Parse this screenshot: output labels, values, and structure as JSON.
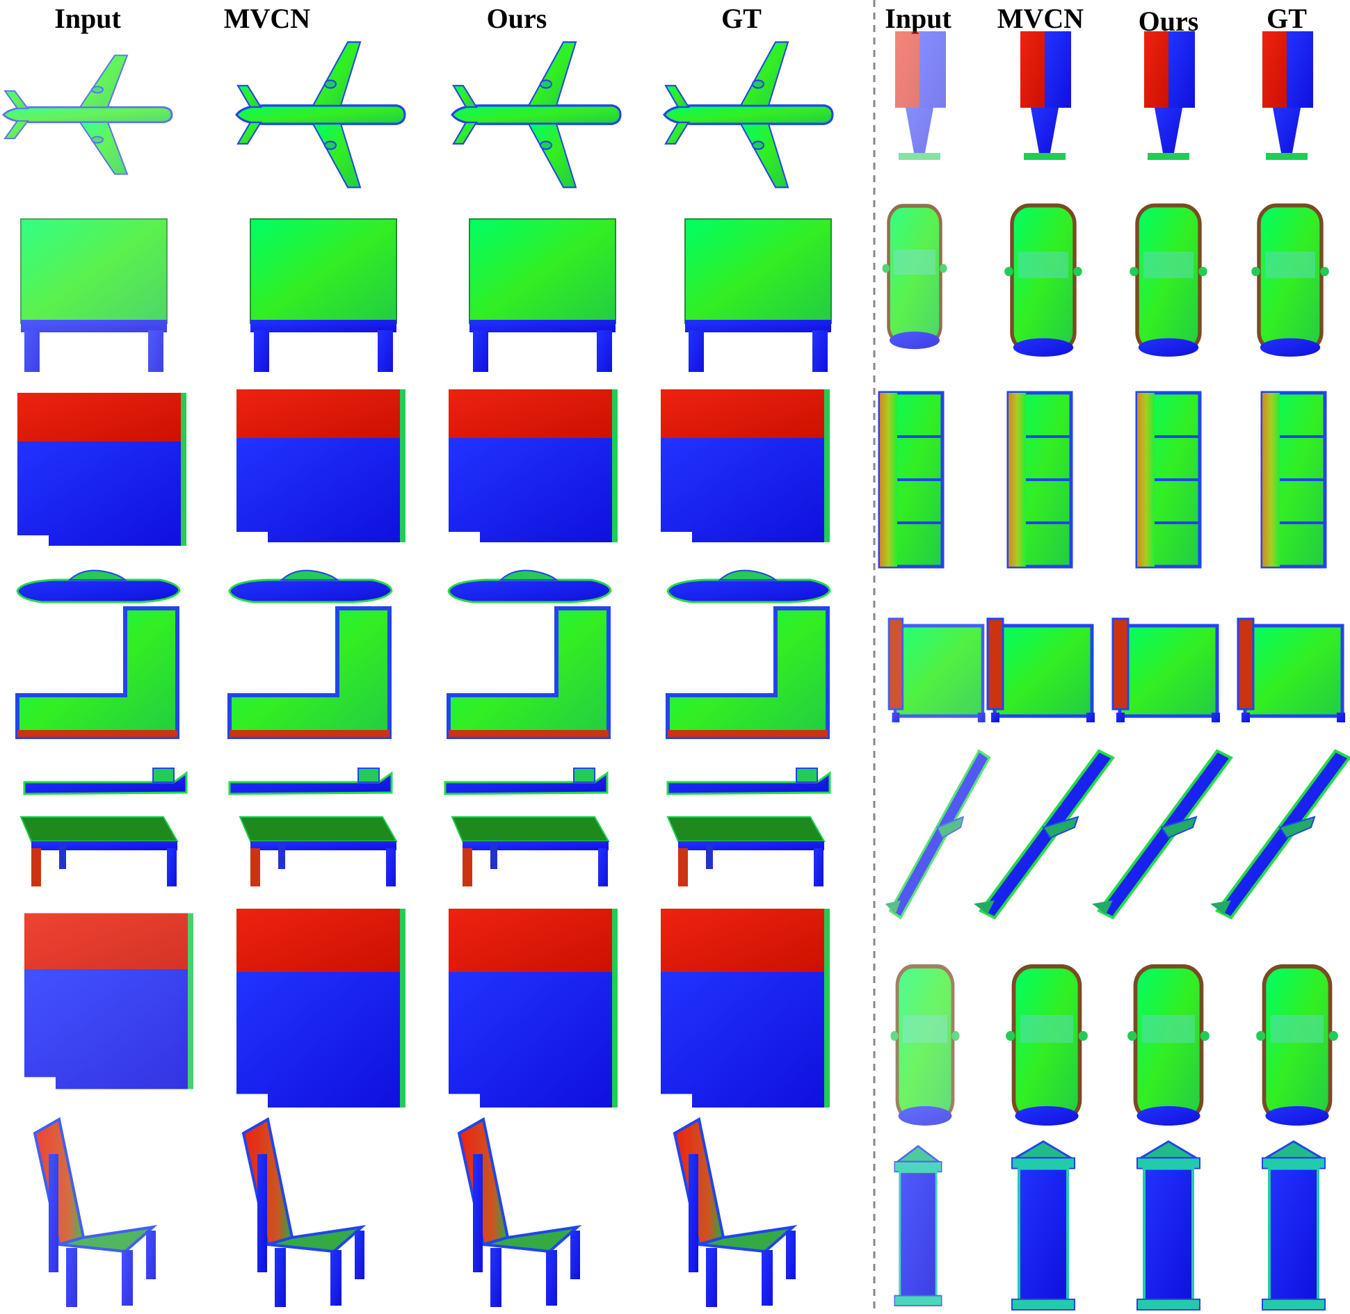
{
  "headers": {
    "left": [
      "Input",
      "MVCN",
      "Ours",
      "GT"
    ],
    "right": [
      "Input",
      "MVCN",
      "Ours",
      "GT"
    ]
  },
  "rows": {
    "left": [
      "airplane",
      "table-top",
      "cabinet",
      "boat",
      "sofa-l",
      "watercraft",
      "table",
      "cabinet-2",
      "chair"
    ],
    "right": [
      "lamp",
      "car",
      "sofa",
      "chair-top",
      "airplane-diag",
      "car-2",
      "pillar"
    ]
  },
  "methods": [
    "input",
    "mvcn",
    "ours",
    "gt"
  ],
  "colors": {
    "green": "#22ee22",
    "blue": "#1818ee",
    "red": "#dd1111",
    "darkgreen": "#1e8a1e",
    "brown": "#b06a20",
    "divider": "#888888"
  }
}
